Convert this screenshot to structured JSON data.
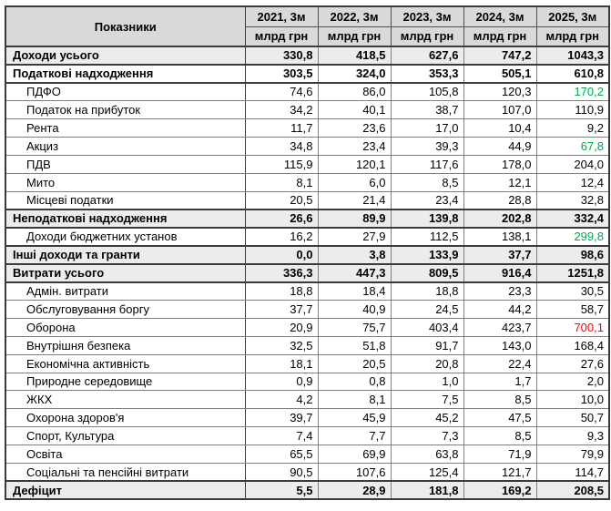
{
  "table": {
    "header": {
      "indicator_label": "Показники",
      "unit_label": "млрд грн",
      "years": [
        "2021, 3м",
        "2022, 3м",
        "2023, 3м",
        "2024, 3м",
        "2025, 3м"
      ]
    },
    "colors": {
      "green": "#00a650",
      "red": "#fe0000"
    },
    "rows": [
      {
        "label": "Доходи усього",
        "bold": true,
        "gray": true,
        "indent": false,
        "values": [
          "330,8",
          "418,5",
          "627,6",
          "747,2",
          "1043,3"
        ]
      },
      {
        "label": "Податкові надходження",
        "bold": true,
        "gray": false,
        "indent": false,
        "values": [
          "303,5",
          "324,0",
          "353,3",
          "505,1",
          "610,8"
        ]
      },
      {
        "label": "ПДФО",
        "bold": false,
        "gray": false,
        "indent": true,
        "values": [
          "74,6",
          "86,0",
          "105,8",
          "120,3",
          "170,2"
        ],
        "value_colors": {
          "4": "green"
        }
      },
      {
        "label": "Податок на прибуток",
        "bold": false,
        "gray": false,
        "indent": true,
        "values": [
          "34,2",
          "40,1",
          "38,7",
          "107,0",
          "110,9"
        ]
      },
      {
        "label": "Рента",
        "bold": false,
        "gray": false,
        "indent": true,
        "values": [
          "11,7",
          "23,6",
          "17,0",
          "10,4",
          "9,2"
        ]
      },
      {
        "label": "Акциз",
        "bold": false,
        "gray": false,
        "indent": true,
        "values": [
          "34,8",
          "23,4",
          "39,3",
          "44,9",
          "67,8"
        ],
        "value_colors": {
          "4": "green"
        }
      },
      {
        "label": "ПДВ",
        "bold": false,
        "gray": false,
        "indent": true,
        "values": [
          "115,9",
          "120,1",
          "117,6",
          "178,0",
          "204,0"
        ]
      },
      {
        "label": "Мито",
        "bold": false,
        "gray": false,
        "indent": true,
        "values": [
          "8,1",
          "6,0",
          "8,5",
          "12,1",
          "12,4"
        ]
      },
      {
        "label": "Місцеві податки",
        "bold": false,
        "gray": false,
        "indent": true,
        "values": [
          "20,5",
          "21,4",
          "23,4",
          "28,8",
          "32,8"
        ]
      },
      {
        "label": "Неподаткові надходження",
        "bold": true,
        "gray": true,
        "indent": false,
        "values": [
          "26,6",
          "89,9",
          "139,8",
          "202,8",
          "332,4"
        ]
      },
      {
        "label": "Доходи бюджетних установ",
        "bold": false,
        "gray": false,
        "indent": true,
        "values": [
          "16,2",
          "27,9",
          "112,5",
          "138,1",
          "299,8"
        ],
        "value_colors": {
          "4": "green"
        }
      },
      {
        "label": "Інші доходи та гранти",
        "bold": true,
        "gray": true,
        "indent": false,
        "values": [
          "0,0",
          "3,8",
          "133,9",
          "37,7",
          "98,6"
        ]
      },
      {
        "label": "Витрати усього",
        "bold": true,
        "gray": true,
        "indent": false,
        "values": [
          "336,3",
          "447,3",
          "809,5",
          "916,4",
          "1251,8"
        ]
      },
      {
        "label": "Адмін. витрати",
        "bold": false,
        "gray": false,
        "indent": true,
        "values": [
          "18,8",
          "18,4",
          "18,8",
          "23,3",
          "30,5"
        ]
      },
      {
        "label": "Обслуговування боргу",
        "bold": false,
        "gray": false,
        "indent": true,
        "values": [
          "37,7",
          "40,9",
          "24,5",
          "44,2",
          "58,7"
        ]
      },
      {
        "label": "Оборона",
        "bold": false,
        "gray": false,
        "indent": true,
        "values": [
          "20,9",
          "75,7",
          "403,4",
          "423,7",
          "700,1"
        ],
        "value_colors": {
          "4": "red"
        }
      },
      {
        "label": "Внутрішня безпека",
        "bold": false,
        "gray": false,
        "indent": true,
        "values": [
          "32,5",
          "51,8",
          "91,7",
          "143,0",
          "168,4"
        ]
      },
      {
        "label": "Економічна активність",
        "bold": false,
        "gray": false,
        "indent": true,
        "values": [
          "18,1",
          "20,5",
          "20,8",
          "22,4",
          "27,6"
        ]
      },
      {
        "label": "Природне середовище",
        "bold": false,
        "gray": false,
        "indent": true,
        "values": [
          "0,9",
          "0,8",
          "1,0",
          "1,7",
          "2,0"
        ]
      },
      {
        "label": "ЖКХ",
        "bold": false,
        "gray": false,
        "indent": true,
        "values": [
          "4,2",
          "8,1",
          "7,5",
          "8,5",
          "10,0"
        ]
      },
      {
        "label": "Охорона здоров'я",
        "bold": false,
        "gray": false,
        "indent": true,
        "values": [
          "39,7",
          "45,9",
          "45,2",
          "47,5",
          "50,7"
        ]
      },
      {
        "label": "Спорт, Культура",
        "bold": false,
        "gray": false,
        "indent": true,
        "values": [
          "7,4",
          "7,7",
          "7,3",
          "8,5",
          "9,3"
        ]
      },
      {
        "label": "Освіта",
        "bold": false,
        "gray": false,
        "indent": true,
        "values": [
          "65,5",
          "69,9",
          "63,8",
          "71,9",
          "79,9"
        ]
      },
      {
        "label": "Соціальні та пенсійні витрати",
        "bold": false,
        "gray": false,
        "indent": true,
        "values": [
          "90,5",
          "107,6",
          "125,4",
          "121,7",
          "114,7"
        ]
      },
      {
        "label": "Дефіцит",
        "bold": true,
        "gray": true,
        "indent": false,
        "values": [
          "5,5",
          "28,9",
          "181,8",
          "169,2",
          "208,5"
        ]
      }
    ]
  },
  "chart_data": {
    "type": "table",
    "columns": [
      "Показники",
      "2021, 3м",
      "2022, 3м",
      "2023, 3м",
      "2024, 3м",
      "2025, 3м"
    ],
    "unit": "млрд грн",
    "rows": [
      {
        "label": "Доходи усього",
        "values": [
          330.8,
          418.5,
          627.6,
          747.2,
          1043.3
        ]
      },
      {
        "label": "Податкові надходження",
        "values": [
          303.5,
          324.0,
          353.3,
          505.1,
          610.8
        ]
      },
      {
        "label": "ПДФО",
        "values": [
          74.6,
          86.0,
          105.8,
          120.3,
          170.2
        ]
      },
      {
        "label": "Податок на прибуток",
        "values": [
          34.2,
          40.1,
          38.7,
          107.0,
          110.9
        ]
      },
      {
        "label": "Рента",
        "values": [
          11.7,
          23.6,
          17.0,
          10.4,
          9.2
        ]
      },
      {
        "label": "Акциз",
        "values": [
          34.8,
          23.4,
          39.3,
          44.9,
          67.8
        ]
      },
      {
        "label": "ПДВ",
        "values": [
          115.9,
          120.1,
          117.6,
          178.0,
          204.0
        ]
      },
      {
        "label": "Мито",
        "values": [
          8.1,
          6.0,
          8.5,
          12.1,
          12.4
        ]
      },
      {
        "label": "Місцеві податки",
        "values": [
          20.5,
          21.4,
          23.4,
          28.8,
          32.8
        ]
      },
      {
        "label": "Неподаткові надходження",
        "values": [
          26.6,
          89.9,
          139.8,
          202.8,
          332.4
        ]
      },
      {
        "label": "Доходи бюджетних установ",
        "values": [
          16.2,
          27.9,
          112.5,
          138.1,
          299.8
        ]
      },
      {
        "label": "Інші доходи та гранти",
        "values": [
          0.0,
          3.8,
          133.9,
          37.7,
          98.6
        ]
      },
      {
        "label": "Витрати усього",
        "values": [
          336.3,
          447.3,
          809.5,
          916.4,
          1251.8
        ]
      },
      {
        "label": "Адмін. витрати",
        "values": [
          18.8,
          18.4,
          18.8,
          23.3,
          30.5
        ]
      },
      {
        "label": "Обслуговування боргу",
        "values": [
          37.7,
          40.9,
          24.5,
          44.2,
          58.7
        ]
      },
      {
        "label": "Оборона",
        "values": [
          20.9,
          75.7,
          403.4,
          423.7,
          700.1
        ]
      },
      {
        "label": "Внутрішня безпека",
        "values": [
          32.5,
          51.8,
          91.7,
          143.0,
          168.4
        ]
      },
      {
        "label": "Економічна активність",
        "values": [
          18.1,
          20.5,
          20.8,
          22.4,
          27.6
        ]
      },
      {
        "label": "Природне середовище",
        "values": [
          0.9,
          0.8,
          1.0,
          1.7,
          2.0
        ]
      },
      {
        "label": "ЖКХ",
        "values": [
          4.2,
          8.1,
          7.5,
          8.5,
          10.0
        ]
      },
      {
        "label": "Охорона здоров'я",
        "values": [
          39.7,
          45.9,
          45.2,
          47.5,
          50.7
        ]
      },
      {
        "label": "Спорт, Культура",
        "values": [
          7.4,
          7.7,
          7.3,
          8.5,
          9.3
        ]
      },
      {
        "label": "Освіта",
        "values": [
          65.5,
          69.9,
          63.8,
          71.9,
          79.9
        ]
      },
      {
        "label": "Соціальні та пенсійні витрати",
        "values": [
          90.5,
          107.6,
          125.4,
          121.7,
          114.7
        ]
      },
      {
        "label": "Дефіцит",
        "values": [
          5.5,
          28.9,
          181.8,
          169.2,
          208.5
        ]
      }
    ]
  }
}
